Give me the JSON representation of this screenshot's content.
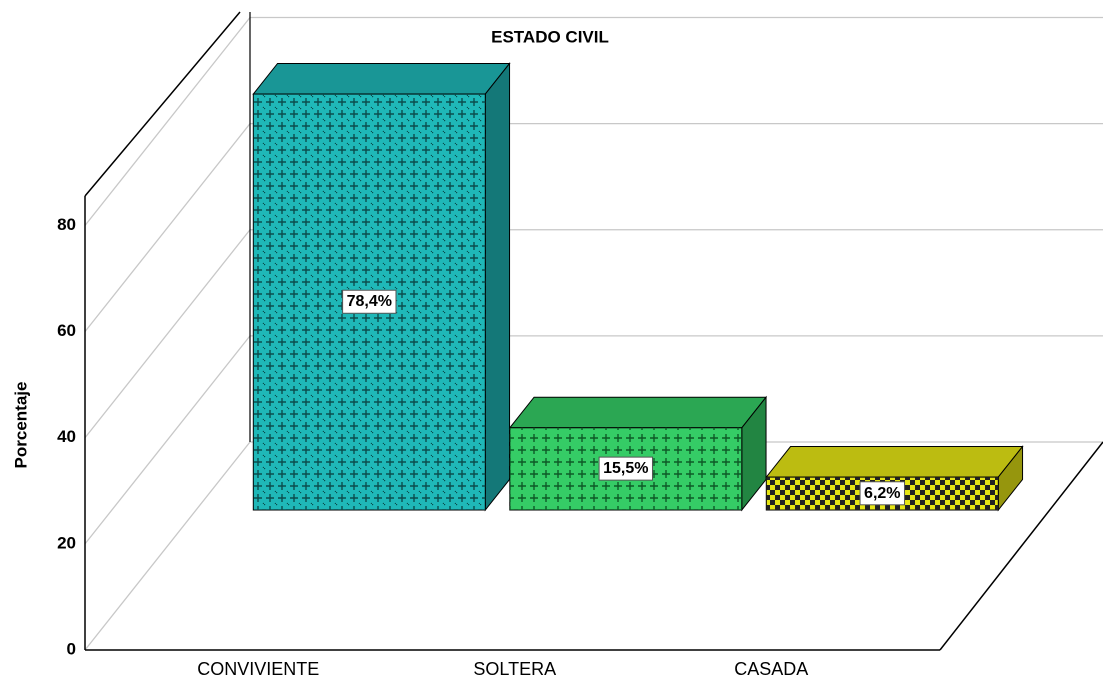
{
  "chart_data": {
    "type": "bar3d",
    "title": "ESTADO CIVIL",
    "y_label": "Porcentaje",
    "categories": [
      "CONVIVIENTE",
      "SOLTERA",
      "CASADA"
    ],
    "values": [
      78.4,
      15.5,
      6.2
    ],
    "value_labels": [
      "78,4%",
      "15,5%",
      "6,2%"
    ],
    "colors": [
      "#1fb8b8",
      "#35cc66",
      "#e6e615"
    ],
    "ylim": [
      0,
      85
    ],
    "yticks": [
      0,
      20,
      40,
      60,
      80
    ],
    "grid": true
  }
}
